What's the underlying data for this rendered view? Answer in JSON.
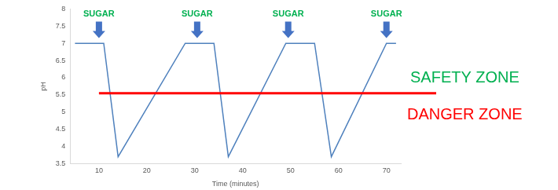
{
  "chart_data": {
    "type": "line",
    "x_label": "Time (minutes)",
    "y_label": "pH",
    "x": [
      5,
      11,
      14,
      28,
      34,
      37,
      49,
      55,
      58.5,
      70,
      72
    ],
    "values": [
      7,
      7,
      3.7,
      7,
      7,
      3.7,
      7,
      7,
      3.7,
      7,
      7
    ],
    "color": "#4f81bd",
    "xlim": [
      4,
      73
    ],
    "xticks": [
      10,
      20,
      30,
      40,
      50,
      60,
      70
    ],
    "ylim": [
      3.5,
      8
    ],
    "yticks": [
      3.5,
      4,
      4.5,
      5,
      5.5,
      6,
      6.5,
      7,
      7.5,
      8
    ],
    "grid": false,
    "annotations": [
      {
        "text": "SUGAR",
        "x": 10,
        "color": "#00b050",
        "arrow_color": "#4472c4"
      },
      {
        "text": "SUGAR",
        "x": 30.5,
        "color": "#00b050",
        "arrow_color": "#4472c4"
      },
      {
        "text": "SUGAR",
        "x": 49.5,
        "color": "#00b050",
        "arrow_color": "#4472c4"
      },
      {
        "text": "SUGAR",
        "x": 70,
        "color": "#00b050",
        "arrow_color": "#4472c4"
      }
    ],
    "threshold": {
      "value": 5.55,
      "from": 10,
      "color": "#ff0000"
    },
    "zones": [
      {
        "text": "SAFETY ZONE",
        "color": "#00b050",
        "side": "above"
      },
      {
        "text": "DANGER ZONE",
        "color": "#ff0000",
        "side": "below"
      }
    ]
  }
}
